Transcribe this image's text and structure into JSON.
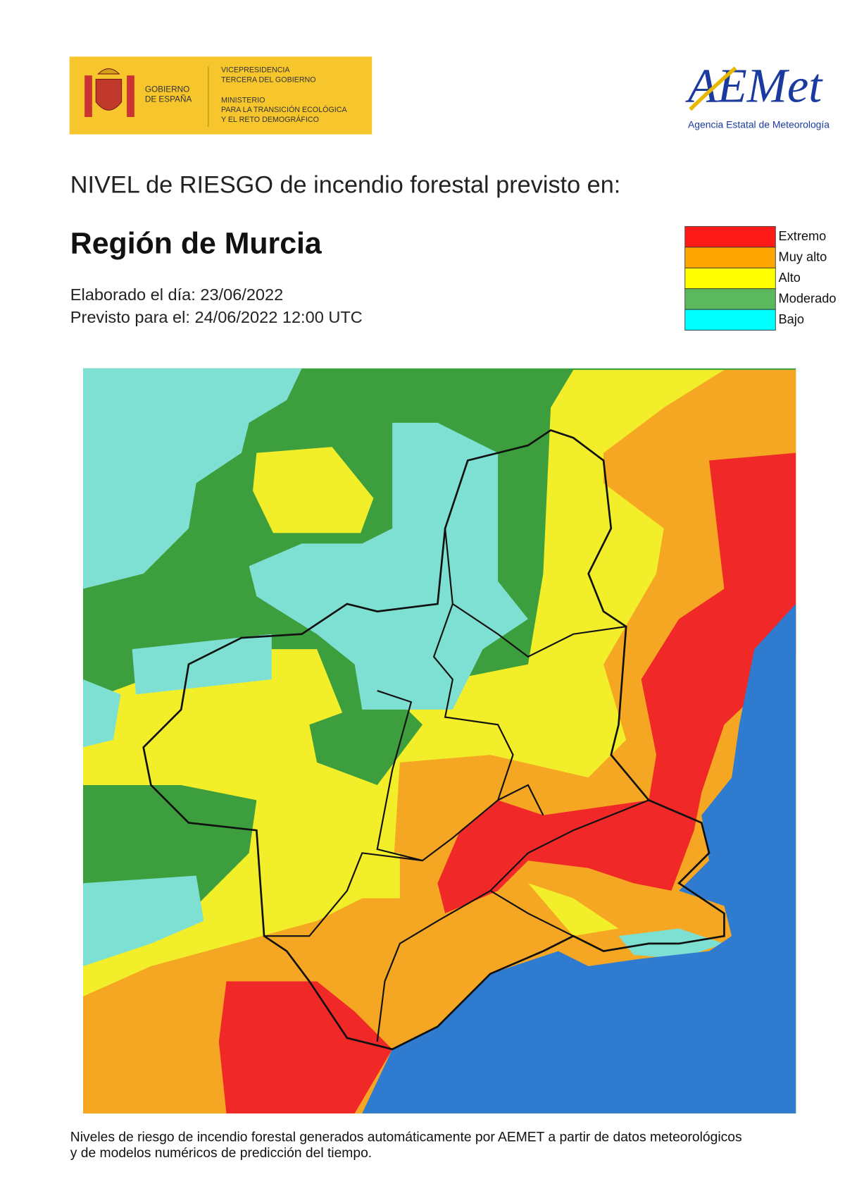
{
  "header": {
    "government": [
      "GOBIERNO",
      "DE ESPAÑA"
    ],
    "ministry": [
      "VICEPRESIDENCIA",
      "TERCERA DEL GOBIERNO",
      "MINISTERIO",
      "PARA LA TRANSICIÓN ECOLÓGICA",
      "Y EL RETO DEMOGRÁFICO"
    ],
    "agency_logo": "AEMet",
    "agency_name": "Agencia Estatal de Meteorología"
  },
  "title": "NIVEL de RIESGO de incendio forestal previsto en:",
  "region": "Región de Murcia",
  "issued": "Elaborado el día: 23/06/2022",
  "valid": "Previsto para el: 24/06/2022 12:00 UTC",
  "legend": [
    {
      "label": "Extremo",
      "color": "#ff1a1a"
    },
    {
      "label": "Muy alto",
      "color": "#ffa500"
    },
    {
      "label": "Alto",
      "color": "#ffff00"
    },
    {
      "label": "Moderado",
      "color": "#5cb85c"
    },
    {
      "label": "Bajo",
      "color": "#00ffff"
    }
  ],
  "footer": [
    "Niveles de riesgo de incendio forestal generados automáticamente por AEMET a partir de datos meteorológicos",
    "y de modelos numéricos de predicción del tiempo."
  ]
}
